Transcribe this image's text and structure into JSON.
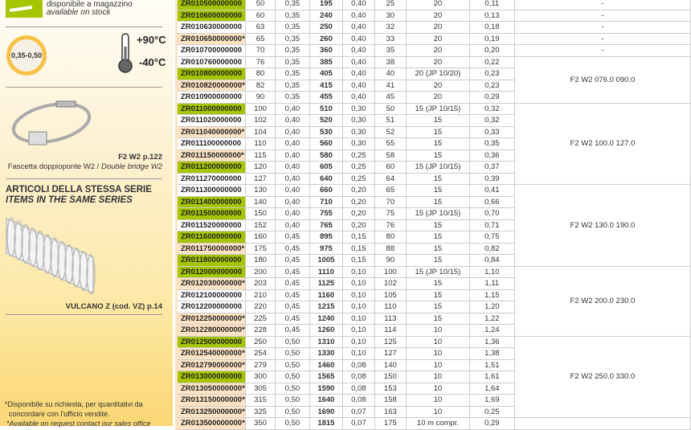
{
  "legend": {
    "stock_it": "disponibile a magazzino",
    "stock_en": "available on stock",
    "stock_color": "#a6c500",
    "request_color": "#fde3c4"
  },
  "specs": {
    "thickness": "0,35-0,50",
    "temp_max": "+90°C",
    "temp_min": "-40°C"
  },
  "accessory": {
    "code": "F2 W2 p.122",
    "name_it": "Fascetta doppioponte W2",
    "name_en": "Double bridge W2",
    "sep": " / "
  },
  "series": {
    "title_it": "ARTICOLI DELLA STESSA SERIE",
    "title_en": "ITEMS IN THE SAME SERIES",
    "item": "VULCANO Z (cod. VZ) p.14"
  },
  "footnote": {
    "it1": "*Disponibile su richiesta, per quantitativi da",
    "it2": "concordare con l'ufficio vendite.",
    "en": "*Available on request contact our sales office"
  },
  "rows": [
    [
      "ZR010500000000",
      50,
      "0,35",
      195,
      "0,40",
      25,
      "20",
      "0,11",
      "g"
    ],
    [
      "ZR010600000000",
      60,
      "0,35",
      240,
      "0,40",
      30,
      "20",
      "0,13",
      "g"
    ],
    [
      "ZR010630000000",
      63,
      "0,35",
      250,
      "0,40",
      32,
      "20",
      "0,18",
      ""
    ],
    [
      "ZR010650000000*",
      65,
      "0,35",
      260,
      "0,40",
      33,
      "20",
      "0,19",
      "p"
    ],
    [
      "ZR010700000000",
      70,
      "0,35",
      360,
      "0,40",
      35,
      "20",
      "0,20",
      ""
    ],
    [
      "ZR010760000000",
      76,
      "0,35",
      385,
      "0,40",
      38,
      "20",
      "0,22",
      ""
    ],
    [
      "ZR010800000000",
      80,
      "0,35",
      405,
      "0,40",
      40,
      "20 (JP 10/20)",
      "0,23",
      "g"
    ],
    [
      "ZR010820000000*",
      82,
      "0,35",
      415,
      "0,40",
      41,
      "20",
      "0,23",
      "p"
    ],
    [
      "ZR010900000000",
      90,
      "0,35",
      455,
      "0,40",
      45,
      "20",
      "0,29",
      ""
    ],
    [
      "ZR011000000000",
      100,
      "0,40",
      510,
      "0,30",
      50,
      "15 (JP 10/15)",
      "0,32",
      "g"
    ],
    [
      "ZR011020000000",
      102,
      "0,40",
      520,
      "0,30",
      51,
      "15",
      "0,32",
      ""
    ],
    [
      "ZR011040000000*",
      104,
      "0,40",
      530,
      "0,30",
      52,
      "15",
      "0,33",
      "p"
    ],
    [
      "ZR011100000000",
      110,
      "0,40",
      560,
      "0,30",
      55,
      "15",
      "0,35",
      ""
    ],
    [
      "ZR011150000000*",
      115,
      "0,40",
      580,
      "0,25",
      58,
      "15",
      "0,36",
      "p"
    ],
    [
      "ZR011200000000",
      120,
      "0,40",
      605,
      "0,25",
      60,
      "15 (JP 10/15)",
      "0,37",
      "g"
    ],
    [
      "ZR011270000000",
      127,
      "0,40",
      640,
      "0,25",
      64,
      "15",
      "0,39",
      ""
    ],
    [
      "ZR011300000000",
      130,
      "0,40",
      660,
      "0,20",
      65,
      "15",
      "0,41",
      ""
    ],
    [
      "ZR011400000000",
      140,
      "0,40",
      710,
      "0,20",
      70,
      "15",
      "0,66",
      "g"
    ],
    [
      "ZR011500000000",
      150,
      "0,40",
      755,
      "0,20",
      75,
      "15 (JP 10/15)",
      "0,70",
      "g"
    ],
    [
      "ZR011520000000",
      152,
      "0,40",
      765,
      "0,20",
      76,
      "15",
      "0,71",
      ""
    ],
    [
      "ZR011600000000",
      160,
      "0,45",
      895,
      "0,15",
      80,
      "15",
      "0,75",
      "g"
    ],
    [
      "ZR011750000000*",
      175,
      "0,45",
      975,
      "0,15",
      88,
      "15",
      "0,82",
      "p"
    ],
    [
      "ZR011800000000",
      180,
      "0,45",
      1005,
      "0,15",
      90,
      "15",
      "0,84",
      "g"
    ],
    [
      "ZR012000000000",
      200,
      "0,45",
      1110,
      "0,10",
      100,
      "15 (JP 10/15)",
      "1,10",
      "g"
    ],
    [
      "ZR012030000000*",
      203,
      "0,45",
      1125,
      "0,10",
      102,
      "15",
      "1,11",
      "p"
    ],
    [
      "ZR012100000000",
      210,
      "0,45",
      1160,
      "0,10",
      105,
      "15",
      "1,15",
      ""
    ],
    [
      "ZR012200000000",
      220,
      "0,45",
      1215,
      "0,10",
      110,
      "15",
      "1,20",
      ""
    ],
    [
      "ZR012250000000*",
      225,
      "0,45",
      1240,
      "0,10",
      113,
      "15",
      "1,22",
      "p"
    ],
    [
      "ZR012280000000*",
      228,
      "0,45",
      1260,
      "0,10",
      114,
      "10",
      "1,24",
      "p"
    ],
    [
      "ZR012500000000",
      250,
      "0,50",
      1310,
      "0,10",
      125,
      "10",
      "1,36",
      "g"
    ],
    [
      "ZR012540000000*",
      254,
      "0,50",
      1330,
      "0,10",
      127,
      "10",
      "1,38",
      "p"
    ],
    [
      "ZR012790000000*",
      279,
      "0,50",
      1460,
      "0,08",
      140,
      "10",
      "1,51",
      "p"
    ],
    [
      "ZR013000000000",
      300,
      "0,50",
      1565,
      "0,08",
      150,
      "10",
      "1,61",
      "g"
    ],
    [
      "ZR013050000000*",
      305,
      "0,50",
      1590,
      "0,08",
      153,
      "10",
      "1,64",
      "p"
    ],
    [
      "ZR013150000000*",
      315,
      "0,50",
      1640,
      "0,08",
      158,
      "10",
      "1,69",
      "p"
    ],
    [
      "ZR013250000000*",
      325,
      "0,50",
      1690,
      "0,07",
      163,
      "10",
      "0,25",
      "p"
    ],
    [
      "ZR013500000000*",
      350,
      "0,50",
      1815,
      "0,07",
      175,
      "10 m compr.",
      "0,29",
      "p"
    ]
  ],
  "groups": [
    [
      "-",
      1
    ],
    [
      "-",
      1
    ],
    [
      "-",
      1
    ],
    [
      "-",
      1
    ],
    [
      "-",
      1
    ],
    [
      "F2 W2 076.0 090.0",
      4
    ],
    [
      "F2 W2 100.0 127.0",
      7
    ],
    [
      "F2 W2 130.0 190.0",
      7
    ],
    [
      "F2 W2 200.0 230.0",
      6
    ],
    [
      "F2 W2 250.0 330.0",
      7
    ],
    [
      "",
      1
    ]
  ]
}
